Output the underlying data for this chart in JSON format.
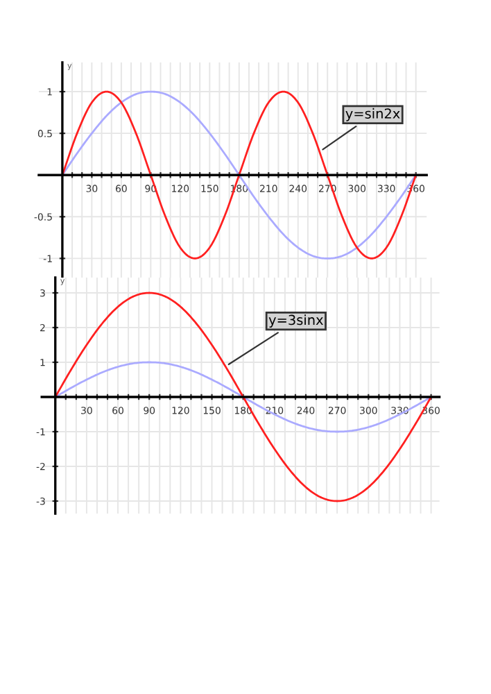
{
  "chart_data": [
    {
      "type": "line",
      "ylabel": "y",
      "x": [
        0,
        15,
        30,
        45,
        60,
        75,
        90,
        105,
        120,
        135,
        150,
        165,
        180,
        195,
        210,
        225,
        240,
        255,
        270,
        285,
        300,
        315,
        330,
        345,
        360
      ],
      "series": [
        {
          "color": "#aaaaff",
          "values": [
            0,
            0.26,
            0.5,
            0.71,
            0.87,
            0.97,
            1,
            0.97,
            0.87,
            0.71,
            0.5,
            0.26,
            0,
            -0.26,
            -0.5,
            -0.71,
            -0.87,
            -0.97,
            -1,
            -0.97,
            -0.87,
            -0.71,
            -0.5,
            -0.26,
            0
          ]
        },
        {
          "color": "#ff2020",
          "values": [
            0,
            0.5,
            0.87,
            1,
            0.87,
            0.5,
            0,
            -0.5,
            -0.87,
            -1,
            -0.87,
            -0.5,
            0,
            0.5,
            0.87,
            1,
            0.87,
            0.5,
            0,
            -0.5,
            -0.87,
            -1,
            -0.87,
            -0.5,
            0
          ]
        }
      ],
      "annotations": [
        {
          "text": "y=sin2x",
          "x": 262,
          "y": 0.28
        }
      ],
      "xlim": [
        -24,
        371
      ],
      "ylim": [
        -1.23,
        1.35
      ],
      "xticks": [
        {
          "value": 10,
          "label": null
        },
        {
          "value": 20,
          "label": null
        },
        30,
        {
          "value": 40,
          "label": null
        },
        {
          "value": 50,
          "label": null
        },
        60,
        {
          "value": 70,
          "label": null
        },
        {
          "value": 80,
          "label": null
        },
        90,
        {
          "value": 100,
          "label": null
        },
        {
          "value": 110,
          "label": null
        },
        120,
        {
          "value": 130,
          "label": null
        },
        {
          "value": 140,
          "label": null
        },
        150,
        {
          "value": 160,
          "label": null
        },
        {
          "value": 170,
          "label": null
        },
        180,
        {
          "value": 190,
          "label": null
        },
        {
          "value": 200,
          "label": null
        },
        210,
        {
          "value": 220,
          "label": null
        },
        {
          "value": 230,
          "label": null
        },
        240,
        {
          "value": 250,
          "label": null
        },
        {
          "value": 260,
          "label": null
        },
        270,
        {
          "value": 280,
          "label": null
        },
        {
          "value": 290,
          "label": null
        },
        300,
        {
          "value": 310,
          "label": null
        },
        {
          "value": 320,
          "label": null
        },
        330,
        {
          "value": 340,
          "label": null
        },
        {
          "value": 350,
          "label": null
        },
        360
      ],
      "yticks": [
        -1,
        -0.5,
        0.5,
        1
      ],
      "grid": true,
      "marker": "none",
      "line_style": "solid"
    },
    {
      "type": "line",
      "ylabel": "y",
      "x": [
        0,
        15,
        30,
        45,
        60,
        75,
        90,
        105,
        120,
        135,
        150,
        165,
        180,
        195,
        210,
        225,
        240,
        255,
        270,
        285,
        300,
        315,
        330,
        345,
        360
      ],
      "series": [
        {
          "color": "#aaaaff",
          "values": [
            0,
            0.26,
            0.5,
            0.71,
            0.87,
            0.97,
            1,
            0.97,
            0.87,
            0.71,
            0.5,
            0.26,
            0,
            -0.26,
            -0.5,
            -0.71,
            -0.87,
            -0.97,
            -1,
            -0.97,
            -0.87,
            -0.71,
            -0.5,
            -0.26,
            0
          ]
        },
        {
          "color": "#ff2020",
          "values": [
            0,
            0.78,
            1.5,
            2.12,
            2.6,
            2.9,
            3,
            2.9,
            2.6,
            2.12,
            1.5,
            0.78,
            0,
            -0.78,
            -1.5,
            -2.12,
            -2.6,
            -2.9,
            -3,
            -2.9,
            -2.6,
            -2.12,
            -1.5,
            -0.78,
            0
          ]
        }
      ],
      "annotations": [
        {
          "text": "y=3sinx",
          "x": 163,
          "y": 0.88
        }
      ],
      "xlim": [
        -13,
        368
      ],
      "ylim": [
        -3.36,
        3.44
      ],
      "xticks": [
        {
          "value": 10,
          "label": null
        },
        {
          "value": 20,
          "label": null
        },
        30,
        {
          "value": 40,
          "label": null
        },
        {
          "value": 50,
          "label": null
        },
        60,
        {
          "value": 70,
          "label": null
        },
        {
          "value": 80,
          "label": null
        },
        90,
        {
          "value": 100,
          "label": null
        },
        {
          "value": 110,
          "label": null
        },
        120,
        {
          "value": 130,
          "label": null
        },
        {
          "value": 140,
          "label": null
        },
        150,
        {
          "value": 160,
          "label": null
        },
        {
          "value": 170,
          "label": null
        },
        180,
        {
          "value": 190,
          "label": null
        },
        {
          "value": 200,
          "label": null
        },
        210,
        {
          "value": 220,
          "label": null
        },
        {
          "value": 230,
          "label": null
        },
        240,
        {
          "value": 250,
          "label": null
        },
        {
          "value": 260,
          "label": null
        },
        270,
        {
          "value": 280,
          "label": null
        },
        {
          "value": 290,
          "label": null
        },
        300,
        {
          "value": 310,
          "label": null
        },
        {
          "value": 320,
          "label": null
        },
        330,
        {
          "value": 340,
          "label": null
        },
        {
          "value": 350,
          "label": null
        },
        360
      ],
      "yticks": [
        -3,
        -2,
        -1,
        1,
        2,
        3
      ],
      "grid": true,
      "marker": "none",
      "line_style": "solid"
    }
  ]
}
